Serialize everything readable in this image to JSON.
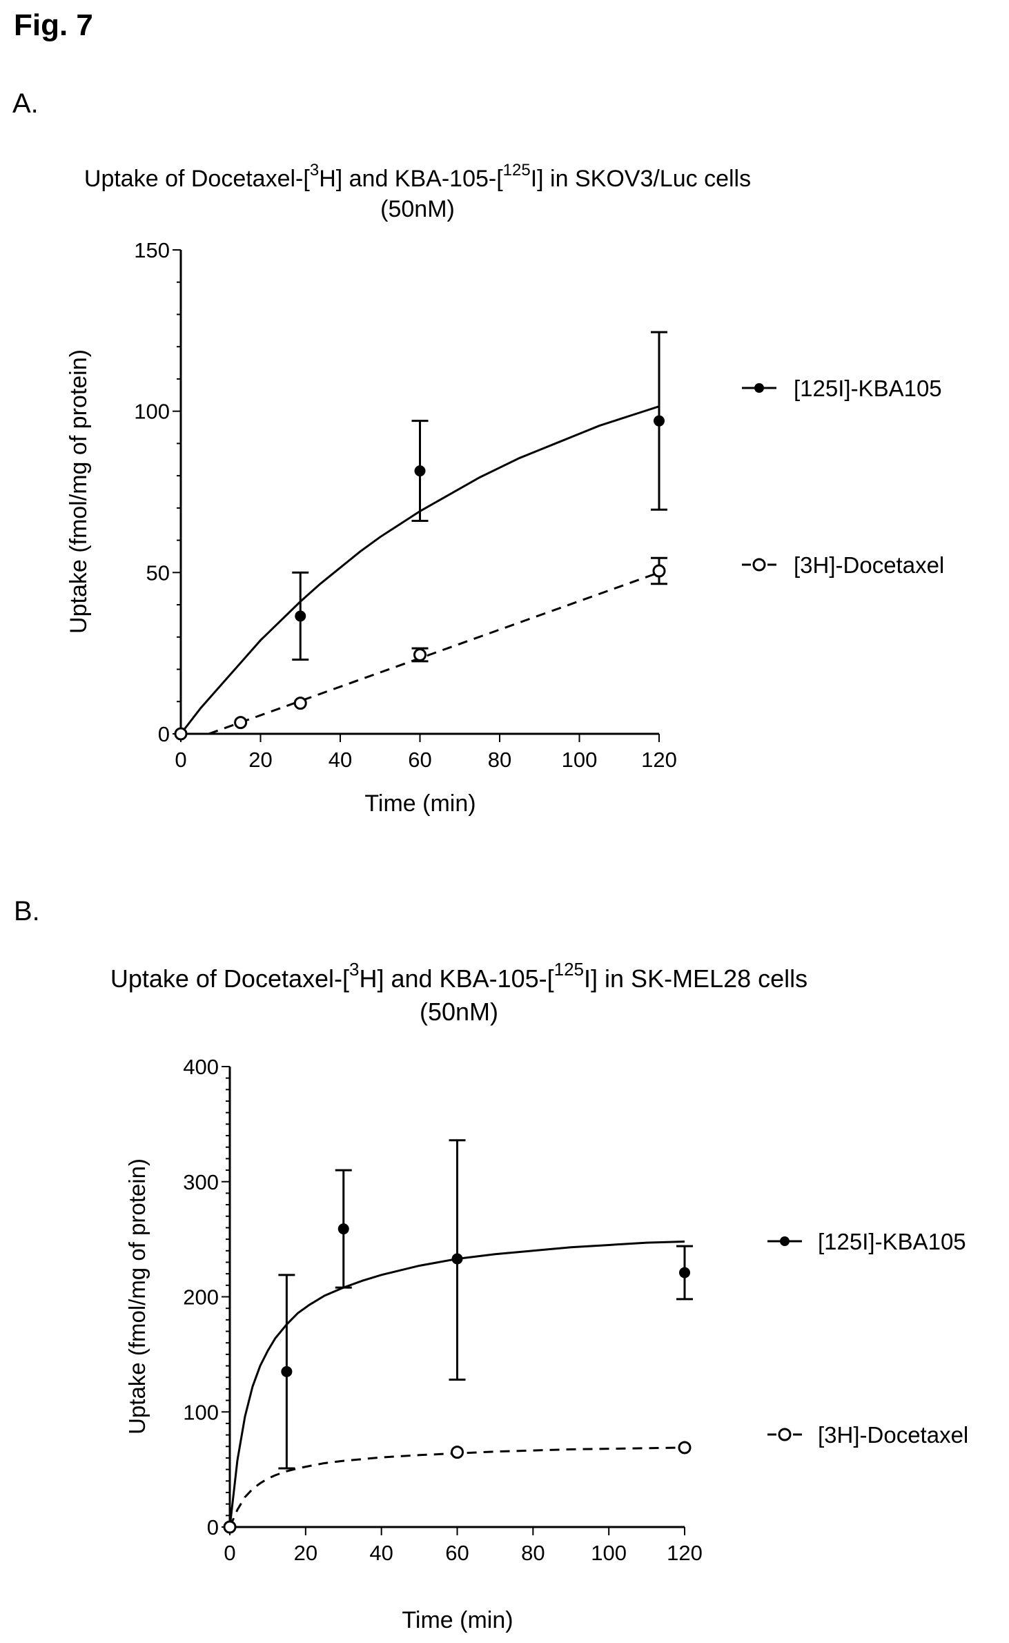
{
  "figure_title": "Fig. 7",
  "panels": [
    {
      "label": "A."
    },
    {
      "label": "B."
    }
  ],
  "chart_data": [
    {
      "type": "scatter",
      "title_line1": {
        "pre": "Uptake of Docetaxel-[",
        "sup1": "3",
        "mid": "H] and KBA-105-[",
        "sup2": "125",
        "post": "I] in SKOV3/Luc cells"
      },
      "title_line2": "(50nM)",
      "xlabel": "Time (min)",
      "ylabel": "Uptake (fmol/mg of protein)",
      "xlim": [
        0,
        120
      ],
      "ylim": [
        0,
        150
      ],
      "xticks": [
        0,
        20,
        40,
        60,
        80,
        100,
        120
      ],
      "yticks": [
        0,
        50,
        100,
        150
      ],
      "legend_position": "right",
      "series": [
        {
          "name": "[125I]-KBA105",
          "marker": "filled-circle",
          "line": "solid",
          "x": [
            0,
            30,
            60,
            120
          ],
          "y": [
            0,
            36.5,
            81.5,
            97
          ],
          "err_low": [
            0,
            23,
            66,
            69.5
          ],
          "err_high": [
            0,
            50,
            97,
            124.5
          ],
          "fit_x": [
            0,
            5,
            10,
            15,
            20,
            25,
            30,
            35,
            40,
            45,
            50,
            55,
            60,
            65,
            70,
            75,
            80,
            85,
            90,
            95,
            100,
            105,
            110,
            115,
            120
          ],
          "fit_y": [
            0,
            8,
            15,
            22,
            29,
            35,
            41,
            46.5,
            51.5,
            56.5,
            61,
            65,
            69,
            72.5,
            76,
            79.5,
            82.5,
            85.5,
            88,
            90.5,
            93,
            95.5,
            97.5,
            99.5,
            101.5
          ]
        },
        {
          "name": "[3H]-Docetaxel",
          "marker": "open-circle",
          "line": "dashed",
          "x": [
            0,
            15,
            30,
            60,
            120
          ],
          "y": [
            0,
            3.5,
            9.5,
            24.5,
            50.5
          ],
          "err_low": [
            0,
            3.5,
            9.5,
            22.5,
            46.5
          ],
          "err_high": [
            0,
            3.5,
            9.5,
            26.5,
            54.5
          ],
          "fit_x": [
            7,
            120
          ],
          "fit_y": [
            0,
            50
          ]
        }
      ]
    },
    {
      "type": "scatter",
      "title_line1": {
        "pre": "Uptake of Docetaxel-[",
        "sup1": "3",
        "mid": "H] and KBA-105-[",
        "sup2": "125",
        "post": "I] in SK-MEL28 cells"
      },
      "title_line2": "(50nM)",
      "xlabel": "Time (min)",
      "ylabel": "Uptake (fmol/mg of protein)",
      "xlim": [
        0,
        120
      ],
      "ylim": [
        0,
        400
      ],
      "xticks": [
        0,
        20,
        40,
        60,
        80,
        100,
        120
      ],
      "yticks": [
        0,
        100,
        200,
        300,
        400
      ],
      "legend_position": "right",
      "series": [
        {
          "name": "[125I]-KBA105",
          "marker": "filled-circle",
          "line": "solid",
          "x": [
            0,
            15,
            30,
            60,
            120
          ],
          "y": [
            0,
            135,
            259,
            233,
            221
          ],
          "err_low": [
            0,
            51,
            208,
            128,
            198
          ],
          "err_high": [
            0,
            219,
            310,
            336,
            244
          ],
          "fit_x": [
            0,
            2,
            4,
            6,
            8,
            10,
            12,
            15,
            18,
            21,
            25,
            30,
            35,
            40,
            50,
            60,
            70,
            80,
            90,
            100,
            110,
            120
          ],
          "fit_y": [
            0,
            58,
            96,
            122,
            140,
            153,
            164,
            176,
            186,
            193,
            201,
            208,
            214,
            219,
            227,
            233,
            237,
            240,
            243,
            245,
            247,
            248
          ]
        },
        {
          "name": "[3H]-Docetaxel",
          "marker": "open-circle",
          "line": "dashed",
          "x": [
            0,
            60,
            120
          ],
          "y": [
            0,
            65,
            69
          ],
          "err_low": [
            0,
            65,
            69
          ],
          "err_high": [
            0,
            65,
            69
          ],
          "fit_x": [
            0,
            2,
            4,
            6,
            8,
            10,
            12,
            15,
            18,
            21,
            25,
            30,
            35,
            40,
            50,
            60,
            70,
            80,
            90,
            100,
            110,
            120
          ],
          "fit_y": [
            0,
            15,
            26,
            33,
            38,
            42,
            45,
            48.5,
            51,
            53,
            55.5,
            57.5,
            59,
            60.5,
            62.5,
            64,
            65.5,
            66.5,
            67.5,
            68,
            68.5,
            69
          ]
        }
      ]
    }
  ]
}
